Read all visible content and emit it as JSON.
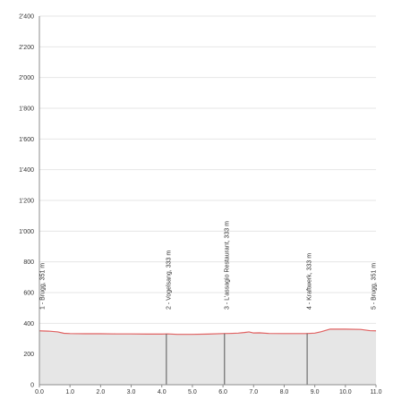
{
  "chart_data": {
    "type": "area",
    "title": "",
    "xlabel": "",
    "ylabel": "",
    "xlim": [
      0,
      11.0
    ],
    "ylim": [
      0,
      2400
    ],
    "grid": true,
    "x_ticks": [
      0.0,
      1.0,
      2.0,
      3.0,
      4.0,
      5.0,
      6.0,
      7.0,
      8.0,
      9.0,
      10.0,
      11.0
    ],
    "x_tick_labels": [
      "0.0",
      "1.0",
      "2.0",
      "3.0",
      "4.0",
      "5.0",
      "6.0",
      "7.0",
      "8.0",
      "9.0",
      "10.0",
      "11.0"
    ],
    "y_ticks": [
      0,
      200,
      400,
      600,
      800,
      1000,
      1200,
      1400,
      1600,
      1800,
      2000,
      2200,
      2400
    ],
    "y_tick_labels": [
      "0",
      "200",
      "400",
      "600",
      "800",
      "1'000",
      "1'200",
      "1'400",
      "1'600",
      "1'800",
      "2'000",
      "2'200",
      "2'400"
    ],
    "series": [
      {
        "color": "#e06060",
        "fill": "#e6e6e6",
        "x": [
          0.0,
          0.3,
          0.6,
          0.8,
          1.0,
          1.5,
          2.0,
          2.5,
          3.0,
          3.5,
          4.0,
          4.2,
          4.5,
          5.0,
          5.5,
          6.0,
          6.2,
          6.5,
          6.7,
          6.85,
          7.0,
          7.2,
          7.5,
          8.0,
          8.5,
          8.7,
          9.0,
          9.2,
          9.5,
          10.0,
          10.5,
          10.8,
          11.0
        ],
        "y": [
          351,
          349,
          344,
          335,
          333,
          332,
          332,
          331,
          331,
          330,
          330,
          331,
          328,
          328,
          330,
          333,
          334,
          336,
          340,
          344,
          337,
          338,
          334,
          333,
          333,
          333,
          336,
          345,
          362,
          362,
          360,
          352,
          351
        ]
      }
    ],
    "annotations": [
      {
        "x": 0.0,
        "label": "1 - Brugg, 351 m"
      },
      {
        "x": 4.15,
        "label": "2 - Vogelsang, 333 m"
      },
      {
        "x": 6.05,
        "label": "3 - L'assagio Restaurant, 333 m"
      },
      {
        "x": 8.75,
        "label": "4 - Kraftwerk, 333 m"
      },
      {
        "x": 11.0,
        "label": "5 - Brugg, 351 m"
      }
    ],
    "colors": {
      "line": "#e06060",
      "fill": "#e6e6e6",
      "grid": "#e6e6e6",
      "axis": "#8c8c8c",
      "marker": "#555555",
      "text": "#333333"
    }
  }
}
